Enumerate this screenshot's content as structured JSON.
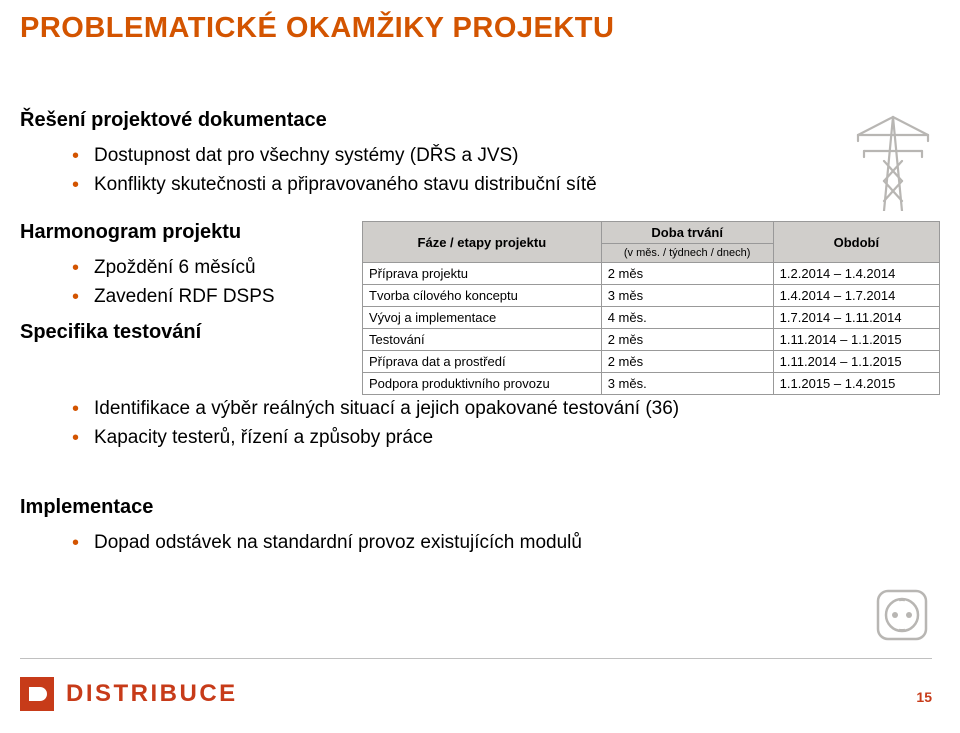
{
  "colors": {
    "accent": "#d35400",
    "logo": "#c73b19",
    "table_header_bg": "#d0cecb",
    "table_border": "#999999",
    "footer_line": "#c0c0c0",
    "text": "#000000",
    "bg": "#ffffff"
  },
  "slide_title": "PROBLEMATICKÉ OKAMŽIKY PROJEKTU",
  "section1": {
    "heading": "Řešení projektové dokumentace",
    "items": [
      "Dostupnost dat pro všechny systémy (DŘS a JVS)",
      "Konflikty skutečnosti a připravovaného stavu distribuční sítě"
    ]
  },
  "section2": {
    "heading": "Harmonogram projektu",
    "items": [
      "Zpoždění 6 měsíců",
      "Zavedení RDF DSPS"
    ]
  },
  "schedule": {
    "type": "table",
    "columns": [
      {
        "label": "Fáze / etapy projektu",
        "align": "left"
      },
      {
        "label": "Doba trvání",
        "sublabel": "(v měs. / týdnech / dnech)",
        "align": "left"
      },
      {
        "label": "Období",
        "align": "left"
      }
    ],
    "rows": [
      [
        "Příprava projektu",
        "2 měs",
        "1.2.2014 – 1.4.2014"
      ],
      [
        "Tvorba cílového konceptu",
        "3 měs",
        "1.4.2014 – 1.7.2014"
      ],
      [
        "Vývoj a implementace",
        "4 měs.",
        "1.7.2014 – 1.11.2014"
      ],
      [
        "Testování",
        "2 měs",
        "1.11.2014 – 1.1.2015"
      ],
      [
        "Příprava dat a prostředí",
        "2 měs",
        "1.11.2014 – 1.1.2015"
      ],
      [
        "Podpora produktivního provozu",
        "3 měs.",
        "1.1.2015 – 1.4.2015"
      ]
    ],
    "font_size": 13,
    "header_fontsize": 13
  },
  "section3": {
    "heading": "Specifika testování",
    "items": [
      "Identifikace a výběr reálných situací a jejich opakované testování (36)",
      "Kapacity testerů, řízení a způsoby práce"
    ]
  },
  "section4": {
    "heading": "Implementace",
    "items": [
      "Dopad odstávek na standardní provoz existujících modulů"
    ]
  },
  "footer_text": "DISTRIBUCE",
  "page_number": "15"
}
